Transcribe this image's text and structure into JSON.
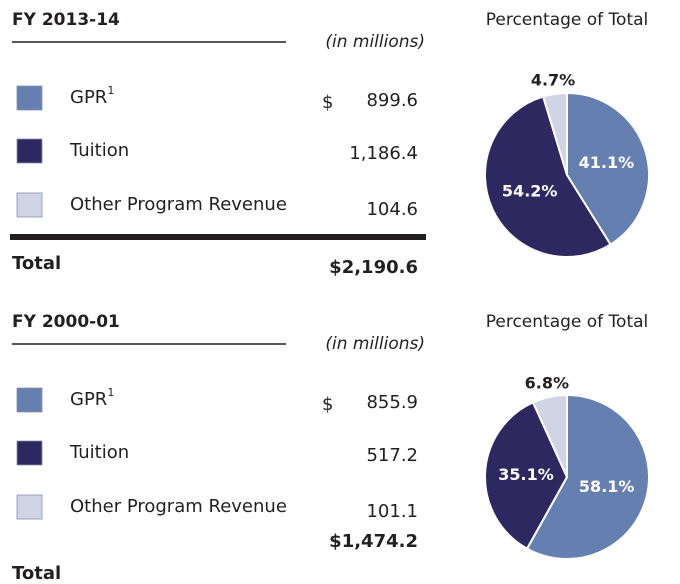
{
  "tables": [
    {
      "title": "FY 2013-14",
      "unit_note": "(in millions)",
      "rows": [
        {
          "label": "GPR",
          "superscript": "1",
          "currency": "$",
          "amount": "899.6"
        },
        {
          "label": "Tuition",
          "amount": "1,186.4"
        },
        {
          "label": "Other Program Revenue",
          "amount": "104.6"
        }
      ],
      "total_label": "Total",
      "total": "$2,190.6"
    },
    {
      "title": "FY 2000-01",
      "unit_note": "(in millions)",
      "rows": [
        {
          "label": "GPR",
          "superscript": "1",
          "currency": "$",
          "amount": "855.9"
        },
        {
          "label": "Tuition",
          "amount": "517.2"
        },
        {
          "label": "Other Program Revenue",
          "amount": "101.1"
        }
      ],
      "total_label": "Total",
      "total": "$1,474.2"
    }
  ],
  "chart_data": [
    {
      "type": "pie",
      "title": "Percentage of Total",
      "values": [
        41.1,
        54.2,
        4.7
      ],
      "value_labels": [
        "41.1%",
        "54.2%",
        "4.7%"
      ],
      "colors": [
        "#6580b0",
        "#2e2860",
        "#d0d5e6"
      ]
    },
    {
      "type": "pie",
      "title": "Percentage of Total",
      "values": [
        58.1,
        35.1,
        6.8
      ],
      "value_labels": [
        "58.1%",
        "35.1%",
        "6.8%"
      ],
      "colors": [
        "#6580b0",
        "#2e2860",
        "#d0d5e6"
      ]
    }
  ]
}
